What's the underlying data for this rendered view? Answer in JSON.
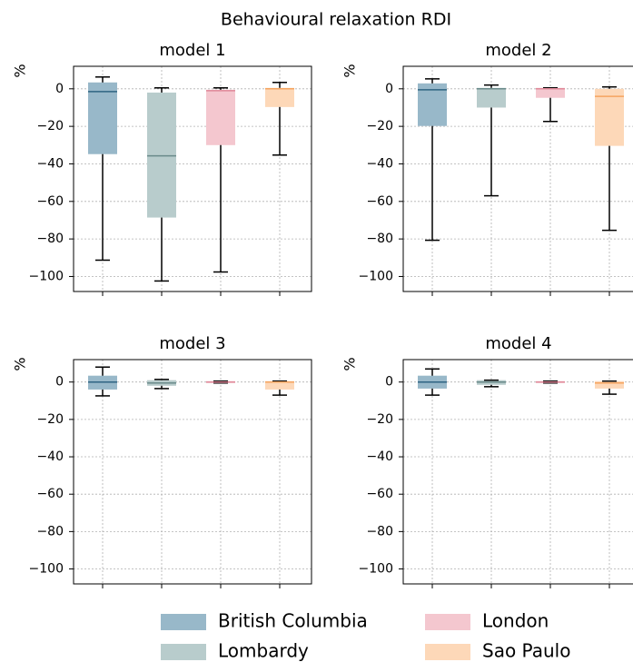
{
  "title": "Behavioural relaxation RDI",
  "legend": {
    "ncol": 2,
    "entries": [
      {
        "name": "British Columbia",
        "color": "#98b8c9"
      },
      {
        "name": "Lombardy",
        "color": "#b8cccc"
      },
      {
        "name": "London",
        "color": "#f4c7cf"
      },
      {
        "name": "Sao Paulo",
        "color": "#fdd8b8"
      }
    ]
  },
  "chart_data": [
    {
      "type": "box",
      "title": "model 1",
      "ylabel": "%",
      "ylim": [
        -108,
        12
      ],
      "grid": true,
      "yticks": [
        0,
        {
          "value": -20,
          "label": "−20"
        },
        {
          "value": -40,
          "label": "−40"
        },
        {
          "value": -60,
          "label": "−60"
        },
        {
          "value": -80,
          "label": "−80"
        },
        {
          "value": -100,
          "label": "−100"
        }
      ],
      "series": [
        {
          "color": "#98b8c9",
          "median_color": "#2f6482",
          "whislo": -91.3,
          "q1": -34.8,
          "median": -1.5,
          "q3": 3.4,
          "whishi": 6.3
        },
        {
          "color": "#b8cccc",
          "median_color": "#6a8a8a",
          "whislo": -102.4,
          "q1": -68.6,
          "median": -35.7,
          "q3": -2,
          "whishi": 0.5
        },
        {
          "color": "#f4c7cf",
          "median_color": "#e0899a",
          "whislo": -97.6,
          "q1": -30,
          "median": -1,
          "q3": -0.5,
          "whishi": 0.5
        },
        {
          "color": "#fdd8b8",
          "median_color": "#f5a460",
          "whislo": -35.3,
          "q1": -9.7,
          "median": 0,
          "q3": 0.5,
          "whishi": 3.4
        }
      ]
    },
    {
      "type": "box",
      "title": "model 2",
      "ylabel": "%",
      "ylim": [
        -108,
        12
      ],
      "grid": true,
      "yticks": [
        0,
        {
          "value": -20,
          "label": "−20"
        },
        {
          "value": -40,
          "label": "−40"
        },
        {
          "value": -60,
          "label": "−60"
        },
        {
          "value": -80,
          "label": "−80"
        },
        {
          "value": -100,
          "label": "−100"
        }
      ],
      "series": [
        {
          "color": "#98b8c9",
          "median_color": "#2f6482",
          "whislo": -80.7,
          "q1": -19.8,
          "median": -0.5,
          "q3": 2.9,
          "whishi": 5.3
        },
        {
          "color": "#b8cccc",
          "median_color": "#6a8a8a",
          "whislo": -57,
          "q1": -10,
          "median": 0,
          "q3": 0.5,
          "whishi": 2
        },
        {
          "color": "#f4c7cf",
          "median_color": "#e0899a",
          "whislo": -17.4,
          "q1": -4.8,
          "median": 0,
          "q3": 0.5,
          "whishi": 0.5
        },
        {
          "color": "#fdd8b8",
          "median_color": "#f5a460",
          "whislo": -75.4,
          "q1": -30.4,
          "median": -4,
          "q3": 0,
          "whishi": 1
        }
      ]
    },
    {
      "type": "box",
      "title": "model 3",
      "ylabel": "%",
      "ylim": [
        -108,
        12
      ],
      "grid": true,
      "yticks": [
        0,
        {
          "value": -20,
          "label": "−20"
        },
        {
          "value": -40,
          "label": "−40"
        },
        {
          "value": -60,
          "label": "−60"
        },
        {
          "value": -80,
          "label": "−80"
        },
        {
          "value": -100,
          "label": "−100"
        }
      ],
      "series": [
        {
          "color": "#98b8c9",
          "median_color": "#2f6482",
          "whislo": -7.4,
          "q1": -4,
          "median": 0,
          "q3": 3.4,
          "whishi": 8
        },
        {
          "color": "#b8cccc",
          "median_color": "#6a8a8a",
          "whislo": -3.5,
          "q1": -2,
          "median": -0.5,
          "q3": 1,
          "whishi": 1.4
        },
        {
          "color": "#f4c7cf",
          "median_color": "#e0899a",
          "whislo": -0.5,
          "q1": -0.5,
          "median": 0,
          "q3": 0.5,
          "whishi": 0.5
        },
        {
          "color": "#fdd8b8",
          "median_color": "#f5a460",
          "whislo": -7,
          "q1": -4,
          "median": 0,
          "q3": 0.5,
          "whishi": 0.5
        }
      ]
    },
    {
      "type": "box",
      "title": "model 4",
      "ylabel": "%",
      "ylim": [
        -108,
        12
      ],
      "grid": true,
      "yticks": [
        0,
        {
          "value": -20,
          "label": "−20"
        },
        {
          "value": -40,
          "label": "−40"
        },
        {
          "value": -60,
          "label": "−60"
        },
        {
          "value": -80,
          "label": "−80"
        },
        {
          "value": -100,
          "label": "−100"
        }
      ],
      "series": [
        {
          "color": "#98b8c9",
          "median_color": "#2f6482",
          "whislo": -7,
          "q1": -3.5,
          "median": 0,
          "q3": 3.4,
          "whishi": 7
        },
        {
          "color": "#b8cccc",
          "median_color": "#6a8a8a",
          "whislo": -2.5,
          "q1": -1.5,
          "median": 0,
          "q3": 1,
          "whishi": 1
        },
        {
          "color": "#f4c7cf",
          "median_color": "#e0899a",
          "whislo": -0.5,
          "q1": -0.5,
          "median": 0,
          "q3": 0.5,
          "whishi": 0.5
        },
        {
          "color": "#fdd8b8",
          "median_color": "#f5a460",
          "whislo": -6.5,
          "q1": -3.5,
          "median": -0.5,
          "q3": 0.5,
          "whishi": 0.5
        }
      ]
    }
  ]
}
